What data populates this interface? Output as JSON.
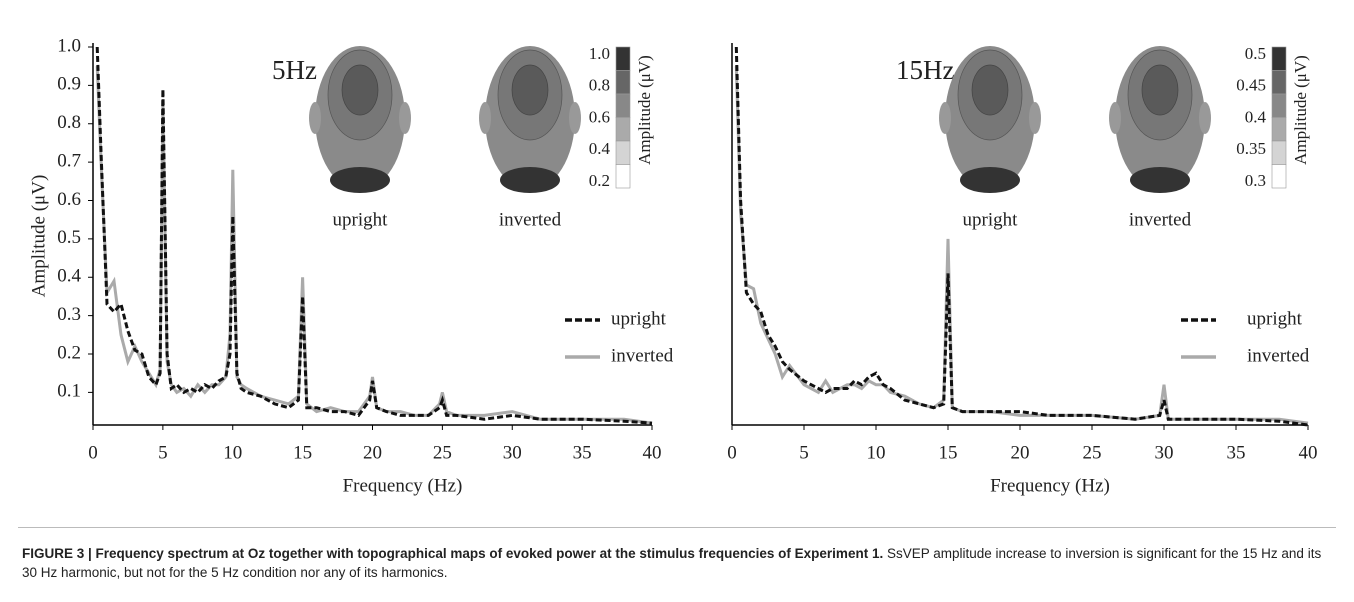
{
  "chart_data": [
    {
      "type": "line",
      "annotation": "5Hz",
      "xlabel": "Frequency (Hz)",
      "ylabel": "Amplitude (μV)",
      "x": [
        0.3,
        0.6,
        1,
        1.5,
        2,
        2.5,
        3,
        3.5,
        4,
        4.5,
        4.8,
        5,
        5.3,
        5.6,
        6,
        6.5,
        7,
        7.5,
        8,
        8.5,
        9,
        9.5,
        9.8,
        10,
        10.3,
        10.6,
        11,
        12,
        13,
        14,
        14.7,
        15,
        15.3,
        16,
        17,
        18,
        19,
        19.8,
        20,
        20.3,
        21,
        22,
        23,
        24,
        24.8,
        25,
        25.3,
        26,
        28,
        30,
        32,
        35,
        38,
        40
      ],
      "series": [
        {
          "name": "upright",
          "color": "#111111",
          "linestyle": "dashed",
          "values": [
            1.0,
            0.7,
            0.33,
            0.31,
            0.33,
            0.26,
            0.21,
            0.2,
            0.14,
            0.12,
            0.15,
            0.89,
            0.2,
            0.11,
            0.12,
            0.1,
            0.11,
            0.1,
            0.12,
            0.11,
            0.13,
            0.14,
            0.2,
            0.56,
            0.15,
            0.11,
            0.1,
            0.09,
            0.07,
            0.06,
            0.08,
            0.35,
            0.06,
            0.06,
            0.05,
            0.05,
            0.04,
            0.08,
            0.13,
            0.06,
            0.05,
            0.04,
            0.04,
            0.04,
            0.06,
            0.08,
            0.04,
            0.04,
            0.03,
            0.04,
            0.03,
            0.03,
            0.025,
            0.02
          ]
        },
        {
          "name": "inverted",
          "color": "#aaaaaa",
          "linestyle": "solid",
          "values": [
            0.95,
            0.68,
            0.36,
            0.39,
            0.25,
            0.18,
            0.22,
            0.18,
            0.15,
            0.12,
            0.16,
            0.86,
            0.18,
            0.12,
            0.1,
            0.11,
            0.09,
            0.12,
            0.1,
            0.12,
            0.12,
            0.14,
            0.25,
            0.68,
            0.14,
            0.12,
            0.11,
            0.09,
            0.08,
            0.07,
            0.09,
            0.4,
            0.07,
            0.05,
            0.06,
            0.05,
            0.05,
            0.09,
            0.14,
            0.06,
            0.05,
            0.05,
            0.04,
            0.04,
            0.07,
            0.1,
            0.05,
            0.04,
            0.04,
            0.05,
            0.03,
            0.03,
            0.03,
            0.02
          ]
        }
      ],
      "xlim": [
        0,
        40
      ],
      "xticks": [
        0,
        5,
        10,
        15,
        20,
        25,
        30,
        35,
        40
      ],
      "ylim": [
        0.015,
        1.0
      ],
      "yticks": [
        0.1,
        0.2,
        0.3,
        0.4,
        0.5,
        0.6,
        0.7,
        0.8,
        0.9,
        {
          "value": 1,
          "label": "1.0"
        }
      ],
      "legend": "right",
      "head_labels": [
        "upright",
        "inverted"
      ],
      "colorbar": {
        "label": "Amplitude (μV)",
        "ticks": [
          {
            "value": 1,
            "label": "1.0"
          },
          0.8,
          0.6,
          0.4,
          0.2
        ]
      }
    },
    {
      "type": "line",
      "annotation": "15Hz",
      "xlabel": "Frequency (Hz)",
      "x": [
        0.3,
        0.6,
        1,
        1.5,
        2,
        2.5,
        3,
        3.5,
        4,
        5,
        6,
        6.5,
        7,
        8,
        8.5,
        9,
        9.5,
        10,
        10.5,
        11,
        12,
        13,
        14,
        14.7,
        15,
        15.3,
        16,
        18,
        20,
        22,
        25,
        28,
        29.7,
        30,
        30.3,
        32,
        35,
        38,
        40
      ],
      "series": [
        {
          "name": "upright",
          "color": "#111111",
          "linestyle": "dashed",
          "values": [
            1.0,
            0.6,
            0.36,
            0.33,
            0.31,
            0.25,
            0.22,
            0.18,
            0.16,
            0.13,
            0.11,
            0.1,
            0.11,
            0.11,
            0.13,
            0.12,
            0.14,
            0.15,
            0.12,
            0.11,
            0.08,
            0.07,
            0.06,
            0.07,
            0.41,
            0.06,
            0.05,
            0.05,
            0.05,
            0.04,
            0.04,
            0.03,
            0.04,
            0.08,
            0.03,
            0.03,
            0.03,
            0.025,
            0.015
          ]
        },
        {
          "name": "inverted",
          "color": "#aaaaaa",
          "linestyle": "solid",
          "values": [
            0.95,
            0.57,
            0.38,
            0.37,
            0.28,
            0.24,
            0.2,
            0.14,
            0.17,
            0.12,
            0.1,
            0.13,
            0.1,
            0.12,
            0.12,
            0.11,
            0.13,
            0.12,
            0.12,
            0.1,
            0.09,
            0.07,
            0.06,
            0.08,
            0.5,
            0.06,
            0.05,
            0.05,
            0.04,
            0.04,
            0.04,
            0.03,
            0.04,
            0.12,
            0.03,
            0.03,
            0.03,
            0.03,
            0.02
          ]
        }
      ],
      "xlim": [
        0,
        40
      ],
      "xticks": [
        0,
        5,
        10,
        15,
        20,
        25,
        30,
        35,
        40
      ],
      "ylim": [
        0.015,
        1.0
      ],
      "legend": "right",
      "head_labels": [
        "upright",
        "inverted"
      ],
      "colorbar": {
        "label": "Amplitude (μV)",
        "ticks": [
          0.5,
          0.45,
          0.4,
          0.35,
          0.3
        ]
      }
    }
  ],
  "caption": {
    "label": "FIGURE 3 | Frequency spectrum at Oz together with topographical maps of evoked power at the stimulus frequencies of Experiment 1.",
    "text": "SsVEP amplitude increase to inversion is significant for the 15 Hz and its 30 Hz harmonic, but not for the 5 Hz condition nor any of its harmonics."
  }
}
